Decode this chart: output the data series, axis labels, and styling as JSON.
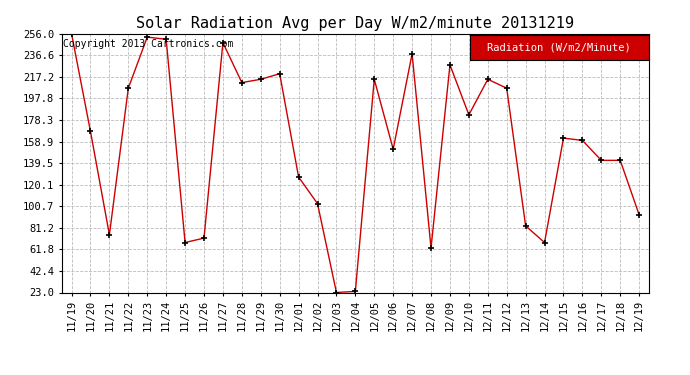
{
  "title": "Solar Radiation Avg per Day W/m2/minute 20131219",
  "copyright_text": "Copyright 2013 Cartronics.com",
  "legend_label": "Radiation (W/m2/Minute)",
  "dates": [
    "11/19",
    "11/20",
    "11/21",
    "11/22",
    "11/23",
    "11/24",
    "11/25",
    "11/26",
    "11/27",
    "11/28",
    "11/29",
    "11/30",
    "12/01",
    "12/02",
    "12/03",
    "12/04",
    "12/05",
    "12/06",
    "12/07",
    "12/08",
    "12/09",
    "12/10",
    "12/11",
    "12/12",
    "12/13",
    "12/14",
    "12/15",
    "12/16",
    "12/17",
    "12/18",
    "12/19"
  ],
  "values": [
    256.0,
    168.0,
    75.0,
    207.0,
    253.0,
    251.0,
    68.0,
    72.0,
    248.0,
    212.0,
    215.0,
    220.0,
    127.0,
    103.0,
    23.0,
    24.0,
    215.0,
    152.0,
    238.0,
    63.0,
    228.0,
    183.0,
    215.0,
    207.0,
    83.0,
    68.0,
    162.0,
    160.0,
    142.0,
    142.0,
    93.0
  ],
  "yticks": [
    23.0,
    42.4,
    61.8,
    81.2,
    100.7,
    120.1,
    139.5,
    158.9,
    178.3,
    197.8,
    217.2,
    236.6,
    256.0
  ],
  "ylim": [
    23.0,
    256.0
  ],
  "line_color": "#cc0000",
  "marker_color": "#000000",
  "bg_color": "#ffffff",
  "grid_color": "#bbbbbb",
  "title_fontsize": 11,
  "tick_fontsize": 7.5,
  "copyright_fontsize": 7,
  "legend_bg": "#cc0000",
  "legend_text_color": "#ffffff",
  "legend_fontsize": 7.5
}
